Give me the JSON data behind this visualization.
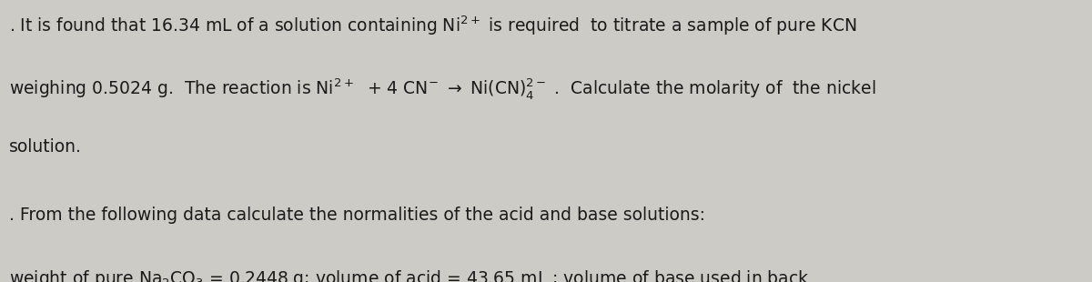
{
  "background_color": "#cccbc6",
  "figsize": [
    12.0,
    3.1
  ],
  "dpi": 100,
  "text_color": "#1a1a1a",
  "fs": 13.5
}
